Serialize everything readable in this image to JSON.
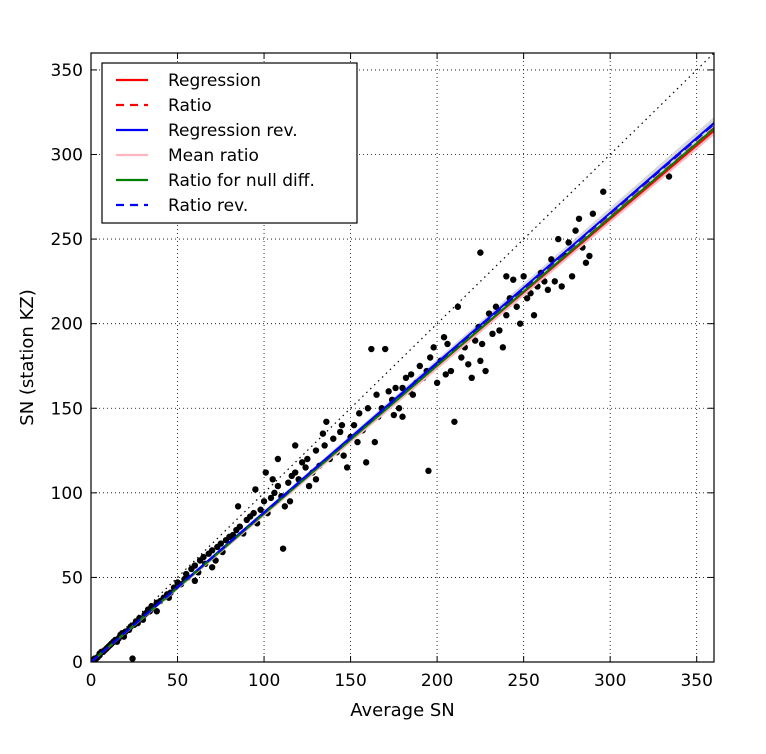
{
  "chart_data": {
    "type": "scatter",
    "xlabel": "Average SN",
    "ylabel": "SN (station KZ)",
    "xlim": [
      0,
      360
    ],
    "ylim": [
      0,
      360
    ],
    "xticks": [
      0,
      50,
      100,
      150,
      200,
      250,
      300,
      350
    ],
    "yticks": [
      0,
      50,
      100,
      150,
      200,
      250,
      300,
      350
    ],
    "grid": true,
    "legend_position": "top-left",
    "identity_line": {
      "style": "dotted",
      "color": "#000000"
    },
    "confidence_band": {
      "color": "#c8c8c8",
      "slope_low": 0.865,
      "slope_high": 0.895
    },
    "fit_lines": [
      {
        "name": "Regression",
        "slope": 0.872,
        "intercept": 0.0,
        "color": "#ff0000",
        "dash": "solid"
      },
      {
        "name": "Ratio",
        "slope": 0.877,
        "intercept": 0.0,
        "color": "#ff0000",
        "dash": "dashed"
      },
      {
        "name": "Regression rev.",
        "slope": 0.885,
        "intercept": 0.0,
        "color": "#0000ff",
        "dash": "solid"
      },
      {
        "name": "Mean ratio",
        "slope": 0.868,
        "intercept": 0.0,
        "color": "#ffb6c1",
        "dash": "solid"
      },
      {
        "name": "Ratio for null diff.",
        "slope": 0.876,
        "intercept": 0.0,
        "color": "#008000",
        "dash": "solid"
      },
      {
        "name": "Ratio rev.",
        "slope": 0.883,
        "intercept": 0.0,
        "color": "#0000ff",
        "dash": "dashed"
      }
    ],
    "scatter": {
      "color": "#000000",
      "points": [
        [
          1,
          1
        ],
        [
          2,
          2
        ],
        [
          3,
          2
        ],
        [
          4,
          3
        ],
        [
          5,
          4
        ],
        [
          5,
          5
        ],
        [
          6,
          6
        ],
        [
          7,
          6
        ],
        [
          8,
          7
        ],
        [
          9,
          8
        ],
        [
          10,
          9
        ],
        [
          11,
          10
        ],
        [
          12,
          11
        ],
        [
          13,
          12
        ],
        [
          14,
          13
        ],
        [
          15,
          12
        ],
        [
          16,
          14
        ],
        [
          17,
          16
        ],
        [
          18,
          17
        ],
        [
          19,
          15
        ],
        [
          20,
          18
        ],
        [
          22,
          19
        ],
        [
          23,
          21
        ],
        [
          24,
          2
        ],
        [
          25,
          22
        ],
        [
          26,
          24
        ],
        [
          27,
          23
        ],
        [
          28,
          26
        ],
        [
          30,
          25
        ],
        [
          31,
          28
        ],
        [
          32,
          29
        ],
        [
          33,
          31
        ],
        [
          34,
          30
        ],
        [
          35,
          33
        ],
        [
          36,
          32
        ],
        [
          38,
          35
        ],
        [
          40,
          36
        ],
        [
          42,
          38
        ],
        [
          44,
          40
        ],
        [
          46,
          41
        ],
        [
          48,
          44
        ],
        [
          50,
          47
        ],
        [
          52,
          46
        ],
        [
          54,
          49
        ],
        [
          55,
          52
        ],
        [
          56,
          50
        ],
        [
          58,
          55
        ],
        [
          60,
          57
        ],
        [
          62,
          53
        ],
        [
          63,
          60
        ],
        [
          65,
          62
        ],
        [
          66,
          58
        ],
        [
          68,
          64
        ],
        [
          70,
          66
        ],
        [
          72,
          60
        ],
        [
          73,
          68
        ],
        [
          75,
          70
        ],
        [
          76,
          65
        ],
        [
          78,
          72
        ],
        [
          80,
          74
        ],
        [
          82,
          75
        ],
        [
          84,
          78
        ],
        [
          86,
          80
        ],
        [
          88,
          76
        ],
        [
          90,
          84
        ],
        [
          92,
          86
        ],
        [
          94,
          88
        ],
        [
          96,
          82
        ],
        [
          98,
          90
        ],
        [
          100,
          95
        ],
        [
          101,
          112
        ],
        [
          102,
          88
        ],
        [
          104,
          97
        ],
        [
          105,
          108
        ],
        [
          106,
          100
        ],
        [
          108,
          104
        ],
        [
          110,
          98
        ],
        [
          111,
          67
        ],
        [
          112,
          92
        ],
        [
          114,
          106
        ],
        [
          115,
          95
        ],
        [
          116,
          110
        ],
        [
          118,
          112
        ],
        [
          120,
          108
        ],
        [
          122,
          118
        ],
        [
          124,
          115
        ],
        [
          125,
          120
        ],
        [
          126,
          104
        ],
        [
          128,
          112
        ],
        [
          130,
          125
        ],
        [
          132,
          116
        ],
        [
          134,
          135
        ],
        [
          135,
          128
        ],
        [
          136,
          142
        ],
        [
          138,
          120
        ],
        [
          140,
          132
        ],
        [
          142,
          124
        ],
        [
          144,
          136
        ],
        [
          145,
          140
        ],
        [
          146,
          122
        ],
        [
          148,
          115
        ],
        [
          150,
          133
        ],
        [
          152,
          140
        ],
        [
          154,
          130
        ],
        [
          155,
          147
        ],
        [
          157,
          137
        ],
        [
          159,
          118
        ],
        [
          160,
          150
        ],
        [
          162,
          185
        ],
        [
          164,
          130
        ],
        [
          165,
          158
        ],
        [
          166,
          145
        ],
        [
          168,
          150
        ],
        [
          170,
          185
        ],
        [
          172,
          160
        ],
        [
          174,
          155
        ],
        [
          175,
          146
        ],
        [
          176,
          162
        ],
        [
          178,
          150
        ],
        [
          180,
          162
        ],
        [
          182,
          168
        ],
        [
          184,
          160
        ],
        [
          185,
          170
        ],
        [
          186,
          158
        ],
        [
          188,
          165
        ],
        [
          190,
          175
        ],
        [
          192,
          168
        ],
        [
          194,
          172
        ],
        [
          195,
          113
        ],
        [
          196,
          180
        ],
        [
          198,
          186
        ],
        [
          200,
          165
        ],
        [
          202,
          178
        ],
        [
          204,
          192
        ],
        [
          206,
          188
        ],
        [
          208,
          172
        ],
        [
          210,
          142
        ],
        [
          212,
          210
        ],
        [
          214,
          180
        ],
        [
          216,
          186
        ],
        [
          218,
          176
        ],
        [
          220,
          168
        ],
        [
          222,
          190
        ],
        [
          224,
          198
        ],
        [
          225,
          178
        ],
        [
          226,
          188
        ],
        [
          228,
          172
        ],
        [
          230,
          206
        ],
        [
          232,
          194
        ],
        [
          234,
          210
        ],
        [
          236,
          196
        ],
        [
          238,
          186
        ],
        [
          240,
          205
        ],
        [
          242,
          215
        ],
        [
          244,
          226
        ],
        [
          246,
          210
        ],
        [
          248,
          200
        ],
        [
          250,
          228
        ],
        [
          252,
          215
        ],
        [
          254,
          218
        ],
        [
          256,
          205
        ],
        [
          258,
          222
        ],
        [
          260,
          230
        ],
        [
          262,
          225
        ],
        [
          264,
          220
        ],
        [
          266,
          238
        ],
        [
          268,
          225
        ],
        [
          270,
          250
        ],
        [
          272,
          222
        ],
        [
          274,
          240
        ],
        [
          276,
          248
        ],
        [
          278,
          228
        ],
        [
          280,
          255
        ],
        [
          282,
          262
        ],
        [
          284,
          245
        ],
        [
          286,
          236
        ],
        [
          288,
          240
        ],
        [
          290,
          265
        ],
        [
          296,
          278
        ],
        [
          334,
          287
        ],
        [
          225,
          242
        ],
        [
          240,
          228
        ],
        [
          205,
          170
        ],
        [
          180,
          145
        ],
        [
          130,
          108
        ],
        [
          118,
          128
        ],
        [
          108,
          120
        ],
        [
          95,
          102
        ],
        [
          85,
          92
        ],
        [
          70,
          56
        ],
        [
          60,
          48
        ],
        [
          45,
          38
        ],
        [
          38,
          30
        ]
      ]
    },
    "legend": [
      {
        "label": "Regression",
        "color": "#ff0000",
        "dash": "solid"
      },
      {
        "label": "Ratio",
        "color": "#ff0000",
        "dash": "dashed"
      },
      {
        "label": "Regression rev.",
        "color": "#0000ff",
        "dash": "solid"
      },
      {
        "label": "Mean ratio",
        "color": "#ffb6c1",
        "dash": "solid"
      },
      {
        "label": "Ratio for null diff.",
        "color": "#008000",
        "dash": "solid"
      },
      {
        "label": "Ratio rev.",
        "color": "#0000ff",
        "dash": "dashed"
      }
    ]
  }
}
